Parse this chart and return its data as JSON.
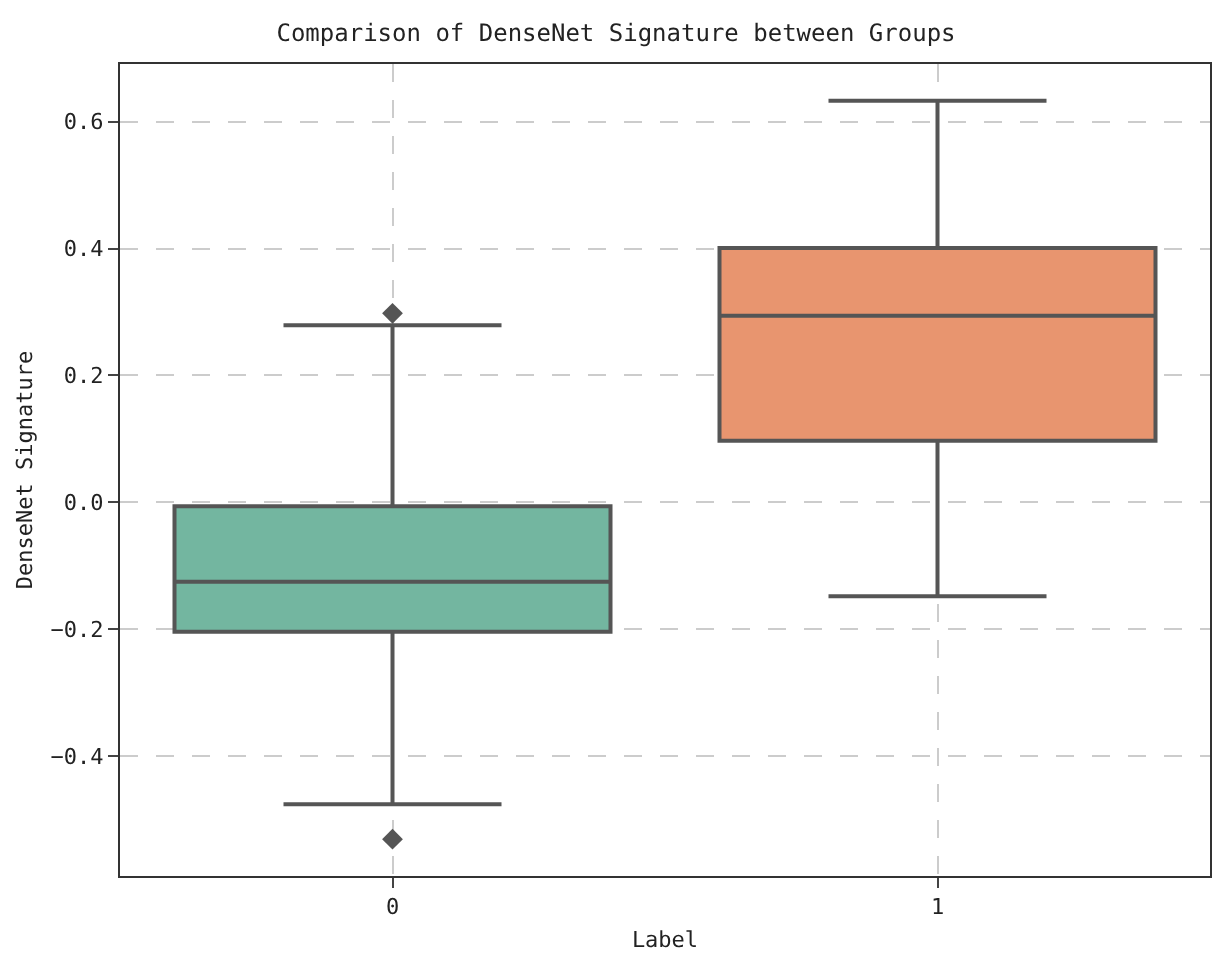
{
  "chart_data": {
    "type": "box",
    "title": "Comparison of DenseNet Signature between Groups",
    "xlabel": "Label",
    "ylabel": "DenseNet Signature",
    "categories": [
      "0",
      "1"
    ],
    "colors": [
      "#73b6a0",
      "#e8956f"
    ],
    "boxes": [
      {
        "low": -0.476,
        "q1": -0.204,
        "median": -0.125,
        "q3": -0.006,
        "high": 0.279,
        "outliers": [
          0.298,
          -0.531
        ]
      },
      {
        "low": -0.148,
        "q1": 0.097,
        "median": 0.294,
        "q3": 0.401,
        "high": 0.633,
        "outliers": null
      }
    ],
    "ylim": [
      -0.589,
      0.691
    ],
    "yticks": [
      {
        "value": -0.4,
        "label": "−0.4"
      },
      {
        "value": -0.2,
        "label": "−0.2"
      },
      {
        "value": 0,
        "label": "0.0"
      },
      {
        "value": 0.2,
        "label": "0.2"
      },
      {
        "value": 0.4,
        "label": "0.4"
      },
      {
        "value": 0.6,
        "label": "0.6"
      }
    ],
    "grid": true,
    "marker": "diamond"
  }
}
